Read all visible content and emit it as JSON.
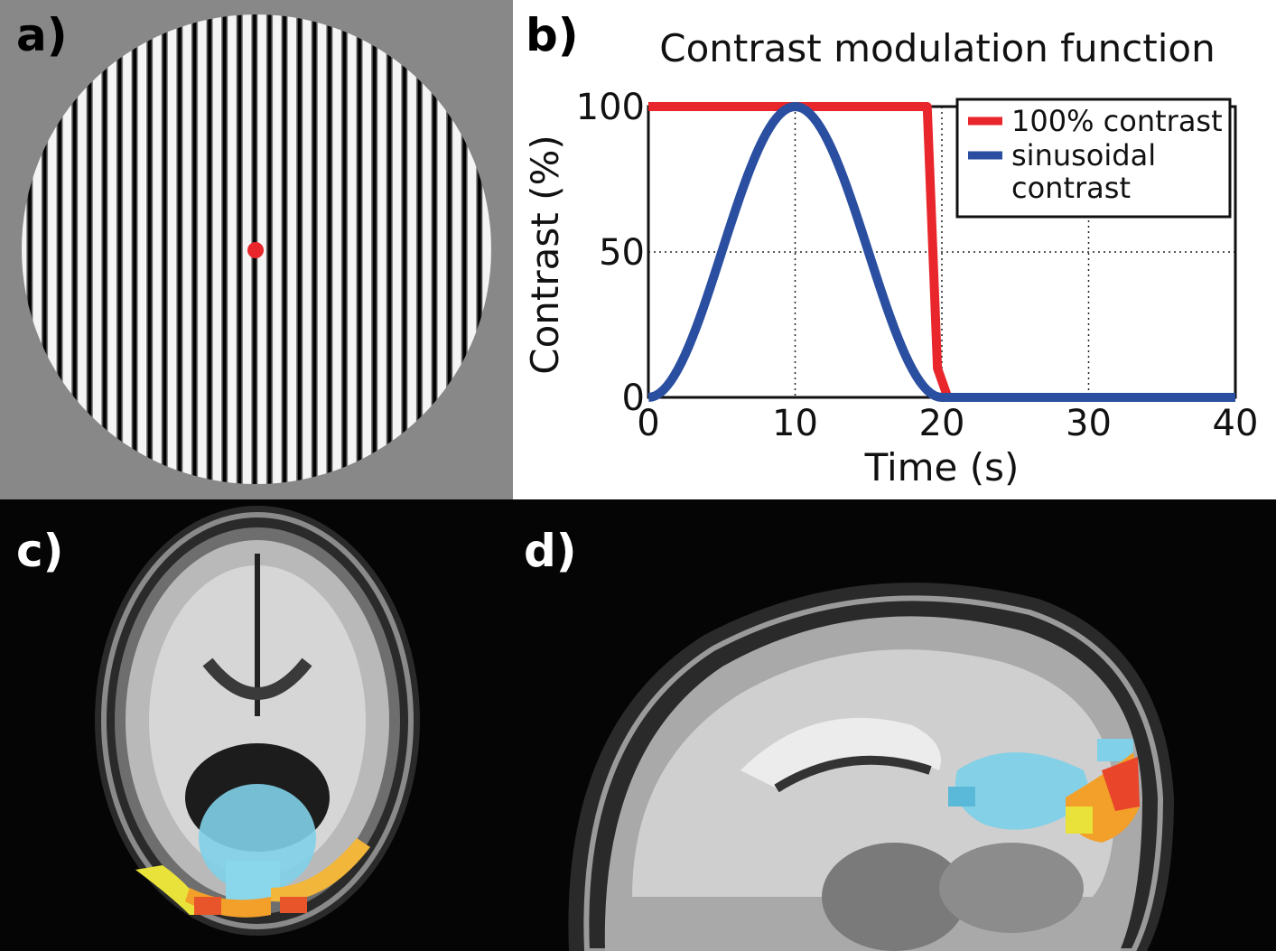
{
  "panels": {
    "a": {
      "label": "a)"
    },
    "b": {
      "label": "b)"
    },
    "c": {
      "label": "c)"
    },
    "d": {
      "label": "d)"
    }
  },
  "colors": {
    "gray_background": "#888888",
    "fixation_dot": "#e8262b",
    "red_series": "#e8262b",
    "blue_series": "#2a4ea0",
    "mri_background": "#050505"
  },
  "chart_data": {
    "type": "line",
    "title": "Contrast modulation function",
    "xlabel": "Time (s)",
    "ylabel": "Contrast (%)",
    "xlim": [
      0,
      40
    ],
    "ylim": [
      0,
      100
    ],
    "xticks": [
      0,
      10,
      20,
      30,
      40
    ],
    "yticks": [
      0,
      50,
      100
    ],
    "grid": "dotted",
    "legend_position": "top-right",
    "series": [
      {
        "name": "100% contrast",
        "color": "#e8262b",
        "x": [
          0,
          19,
          19.7,
          20.4,
          40
        ],
        "y": [
          100,
          100,
          10,
          0,
          0
        ]
      },
      {
        "name": "sinusoidal contrast",
        "legend_lines": [
          "sinusoidal",
          "contrast"
        ],
        "color": "#2a4ea0",
        "function": "50*(1-cos(2*pi*t/20)) for t in [0,20], 0 after",
        "x": [
          0,
          2,
          4,
          5,
          6,
          8,
          10,
          12,
          14,
          15,
          16,
          18,
          20,
          40
        ],
        "y": [
          0,
          9.5,
          34.5,
          50,
          65.5,
          90.5,
          100,
          90.5,
          65.5,
          50,
          34.5,
          9.5,
          0,
          0
        ]
      }
    ]
  }
}
